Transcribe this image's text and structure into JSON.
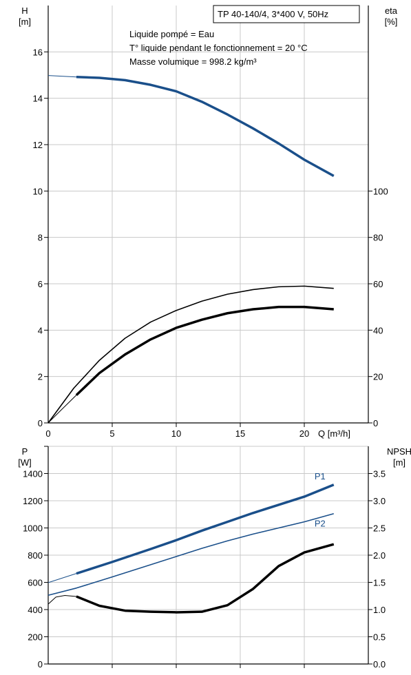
{
  "chart_data": [
    {
      "type": "line",
      "title": "TP 40-140/4, 3*400 V, 50Hz",
      "annotations": [
        "Liquide pompé = Eau",
        "T° liquide pendant le fonctionnement = 20 °C",
        "Masse volumique = 998.2 kg/m³"
      ],
      "xlabel": "Q [m³/h]",
      "xlim": [
        0,
        25
      ],
      "xticks": [
        0,
        5,
        10,
        15,
        20
      ],
      "ylabel_left": {
        "name": "H",
        "unit": "[m]"
      },
      "ylim_left": [
        0,
        18
      ],
      "yticks_left": [
        0,
        2,
        4,
        6,
        8,
        10,
        12,
        14,
        16
      ],
      "ylabel_right": {
        "name": "eta",
        "unit": "[%]"
      },
      "ylim_right": [
        0,
        180
      ],
      "yticks_right": [
        0,
        20,
        40,
        60,
        80,
        100
      ],
      "grid": true,
      "series": [
        {
          "axis": "left",
          "color": "#1a4f8a",
          "width": 3.5,
          "extension_width": 1,
          "extension": [
            [
              0,
              14.98
            ],
            [
              2.2,
              14.92
            ]
          ],
          "points": [
            [
              2.2,
              14.92
            ],
            [
              4,
              14.88
            ],
            [
              6,
              14.78
            ],
            [
              8,
              14.58
            ],
            [
              10,
              14.3
            ],
            [
              12,
              13.85
            ],
            [
              14,
              13.3
            ],
            [
              16,
              12.7
            ],
            [
              18,
              12.05
            ],
            [
              20,
              11.35
            ],
            [
              22.3,
              10.65
            ]
          ]
        },
        {
          "axis": "right",
          "color": "#000000",
          "width": 1.6,
          "points": [
            [
              0,
              0
            ],
            [
              2,
              15
            ],
            [
              4,
              27
            ],
            [
              6,
              36.5
            ],
            [
              8,
              43.5
            ],
            [
              10,
              48.5
            ],
            [
              12,
              52.5
            ],
            [
              14,
              55.5
            ],
            [
              16,
              57.5
            ],
            [
              18,
              58.7
            ],
            [
              20,
              59
            ],
            [
              22.3,
              58
            ]
          ]
        },
        {
          "axis": "right",
          "color": "#000000",
          "width": 3.5,
          "extension_width": 1,
          "extension": [
            [
              0,
              0
            ],
            [
              1,
              5.5
            ],
            [
              2.2,
              12
            ]
          ],
          "points": [
            [
              2.2,
              12
            ],
            [
              4,
              21.5
            ],
            [
              6,
              29.5
            ],
            [
              8,
              36
            ],
            [
              10,
              41
            ],
            [
              12,
              44.5
            ],
            [
              14,
              47.3
            ],
            [
              16,
              49
            ],
            [
              18,
              50
            ],
            [
              20,
              50
            ],
            [
              22.3,
              49
            ]
          ]
        }
      ]
    },
    {
      "type": "line",
      "xlim": [
        0,
        25
      ],
      "ylabel_left": {
        "name": "P",
        "unit": "[W]"
      },
      "ylim_left": [
        0,
        1600
      ],
      "yticks_left": [
        0,
        200,
        400,
        600,
        800,
        1000,
        1200,
        1400
      ],
      "ylabel_right": {
        "name": "NPSH",
        "unit": "[m]"
      },
      "ylim_right": [
        0,
        4
      ],
      "yticks_right": [
        "0.0",
        "0.5",
        "1.0",
        "1.5",
        "2.0",
        "2.5",
        "3.0",
        "3.5"
      ],
      "grid": true,
      "series": [
        {
          "name": "P1",
          "axis": "left",
          "color": "#1a4f8a",
          "width": 3.5,
          "extension_width": 1,
          "label_at": [
            20.8,
            1358
          ],
          "extension": [
            [
              0,
              598
            ],
            [
              2.2,
              665
            ]
          ],
          "points": [
            [
              2.2,
              665
            ],
            [
              5,
              750
            ],
            [
              8,
              845
            ],
            [
              10,
              910
            ],
            [
              12,
              980
            ],
            [
              14,
              1045
            ],
            [
              16,
              1110
            ],
            [
              18,
              1170
            ],
            [
              20,
              1230
            ],
            [
              22.3,
              1318
            ]
          ]
        },
        {
          "name": "P2",
          "axis": "left",
          "color": "#1a4f8a",
          "width": 1.6,
          "label_at": [
            20.8,
            1010
          ],
          "points": [
            [
              0,
              505
            ],
            [
              2.2,
              558
            ],
            [
              5,
              640
            ],
            [
              8,
              730
            ],
            [
              10,
              790
            ],
            [
              12,
              850
            ],
            [
              14,
              905
            ],
            [
              16,
              955
            ],
            [
              18,
              1000
            ],
            [
              20,
              1045
            ],
            [
              22.3,
              1105
            ]
          ]
        },
        {
          "axis": "right",
          "color": "#000000",
          "width": 3.5,
          "extension_width": 1,
          "extension": [
            [
              0,
              1.1
            ],
            [
              0.6,
              1.23
            ],
            [
              1.3,
              1.26
            ],
            [
              2.2,
              1.24
            ]
          ],
          "points": [
            [
              2.2,
              1.24
            ],
            [
              4,
              1.07
            ],
            [
              6,
              0.98
            ],
            [
              8,
              0.96
            ],
            [
              10,
              0.95
            ],
            [
              12,
              0.96
            ],
            [
              14,
              1.08
            ],
            [
              16,
              1.38
            ],
            [
              18,
              1.8
            ],
            [
              20,
              2.05
            ],
            [
              22.3,
              2.2
            ]
          ]
        }
      ]
    }
  ]
}
